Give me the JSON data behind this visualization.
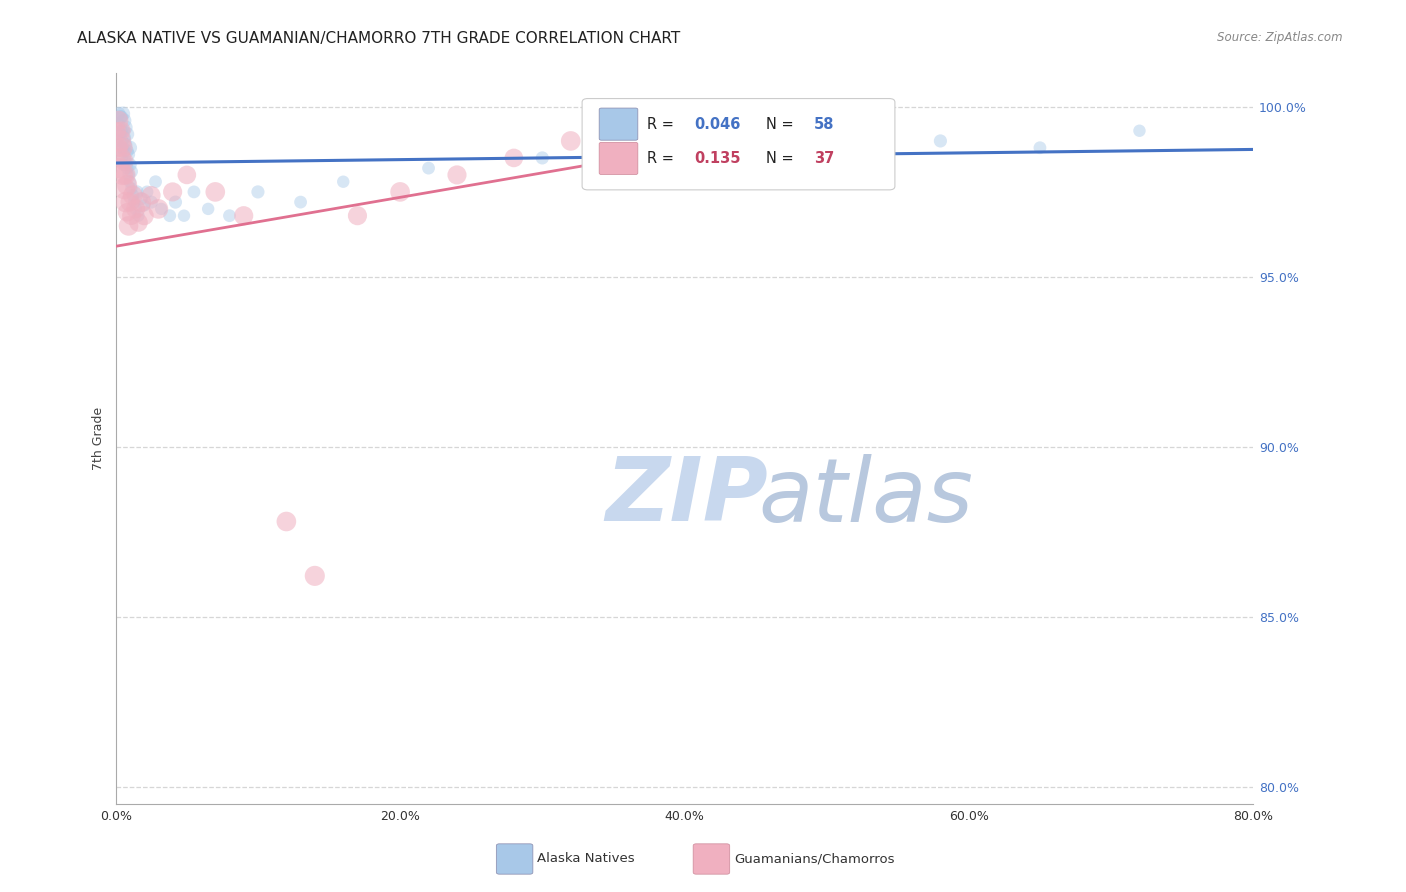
{
  "title": "ALASKA NATIVE VS GUAMANIAN/CHAMORRO 7TH GRADE CORRELATION CHART",
  "source": "Source: ZipAtlas.com",
  "xlabel_ticks": [
    "0.0%",
    "20.0%",
    "40.0%",
    "60.0%",
    "80.0%"
  ],
  "ylabel_ticks": [
    "80.0%",
    "85.0%",
    "90.0%",
    "95.0%",
    "100.0%"
  ],
  "ylabel_label": "7th Grade",
  "xlim": [
    0.0,
    0.8
  ],
  "ylim": [
    0.795,
    1.01
  ],
  "color_blue": "#a8c8e8",
  "color_pink": "#f0b0c0",
  "color_blue_line": "#4472c4",
  "color_pink_line": "#e07090",
  "color_blue_text": "#4472c4",
  "color_pink_text": "#c04060",
  "watermark_zip": "#c8d8ee",
  "watermark_atlas": "#b8c8de",
  "grid_color": "#cccccc",
  "background_color": "#ffffff",
  "title_fontsize": 11,
  "axis_label_fontsize": 9,
  "tick_fontsize": 9,
  "alaska_natives_x": [
    0.001,
    0.002,
    0.002,
    0.003,
    0.003,
    0.003,
    0.004,
    0.004,
    0.004,
    0.004,
    0.005,
    0.005,
    0.005,
    0.005,
    0.006,
    0.006,
    0.006,
    0.007,
    0.007,
    0.007,
    0.008,
    0.008,
    0.008,
    0.009,
    0.009,
    0.01,
    0.01,
    0.01,
    0.011,
    0.011,
    0.012,
    0.013,
    0.014,
    0.015,
    0.016,
    0.018,
    0.02,
    0.022,
    0.025,
    0.028,
    0.032,
    0.038,
    0.042,
    0.048,
    0.055,
    0.065,
    0.08,
    0.1,
    0.13,
    0.16,
    0.22,
    0.3,
    0.38,
    0.46,
    0.52,
    0.58,
    0.65,
    0.72
  ],
  "alaska_natives_y": [
    0.99,
    0.995,
    0.998,
    0.988,
    0.992,
    0.997,
    0.985,
    0.99,
    0.993,
    0.997,
    0.983,
    0.988,
    0.993,
    0.998,
    0.987,
    0.991,
    0.996,
    0.984,
    0.989,
    0.994,
    0.982,
    0.987,
    0.992,
    0.98,
    0.986,
    0.978,
    0.983,
    0.988,
    0.976,
    0.981,
    0.974,
    0.972,
    0.97,
    0.975,
    0.968,
    0.973,
    0.971,
    0.975,
    0.972,
    0.978,
    0.97,
    0.968,
    0.972,
    0.968,
    0.975,
    0.97,
    0.968,
    0.975,
    0.972,
    0.978,
    0.982,
    0.985,
    0.988,
    0.99,
    0.992,
    0.99,
    0.988,
    0.993
  ],
  "alaska_natives_size": [
    80,
    90,
    100,
    85,
    95,
    110,
    90,
    100,
    85,
    95,
    80,
    90,
    100,
    110,
    85,
    95,
    105,
    80,
    90,
    100,
    85,
    95,
    105,
    80,
    90,
    85,
    95,
    105,
    80,
    90,
    85,
    80,
    85,
    90,
    80,
    85,
    80,
    85,
    90,
    85,
    80,
    85,
    90,
    80,
    85,
    80,
    85,
    90,
    85,
    80,
    85,
    90,
    95,
    100,
    95,
    90,
    85,
    80
  ],
  "guamanian_x": [
    0.001,
    0.002,
    0.002,
    0.003,
    0.003,
    0.004,
    0.004,
    0.005,
    0.005,
    0.006,
    0.006,
    0.007,
    0.007,
    0.008,
    0.008,
    0.009,
    0.01,
    0.011,
    0.012,
    0.014,
    0.016,
    0.018,
    0.02,
    0.025,
    0.03,
    0.04,
    0.05,
    0.07,
    0.09,
    0.12,
    0.14,
    0.17,
    0.2,
    0.24,
    0.28,
    0.32,
    0.4
  ],
  "guamanian_y": [
    0.993,
    0.988,
    0.996,
    0.982,
    0.99,
    0.985,
    0.993,
    0.98,
    0.988,
    0.976,
    0.984,
    0.972,
    0.98,
    0.969,
    0.977,
    0.965,
    0.972,
    0.968,
    0.974,
    0.97,
    0.966,
    0.972,
    0.968,
    0.974,
    0.97,
    0.975,
    0.98,
    0.975,
    0.968,
    0.878,
    0.862,
    0.968,
    0.975,
    0.98,
    0.985,
    0.99,
    0.993
  ],
  "guamanian_size": [
    160,
    180,
    200,
    220,
    250,
    200,
    180,
    220,
    200,
    240,
    180,
    220,
    200,
    180,
    210,
    200,
    190,
    180,
    200,
    190,
    180,
    200,
    190,
    180,
    200,
    190,
    180,
    200,
    190,
    200,
    210,
    190,
    200,
    190,
    180,
    200,
    190
  ],
  "blue_line_x": [
    0.0,
    0.8
  ],
  "blue_line_y": [
    0.9835,
    0.9875
  ],
  "pink_line_x": [
    0.0,
    0.5
  ],
  "pink_line_y": [
    0.959,
    0.995
  ]
}
